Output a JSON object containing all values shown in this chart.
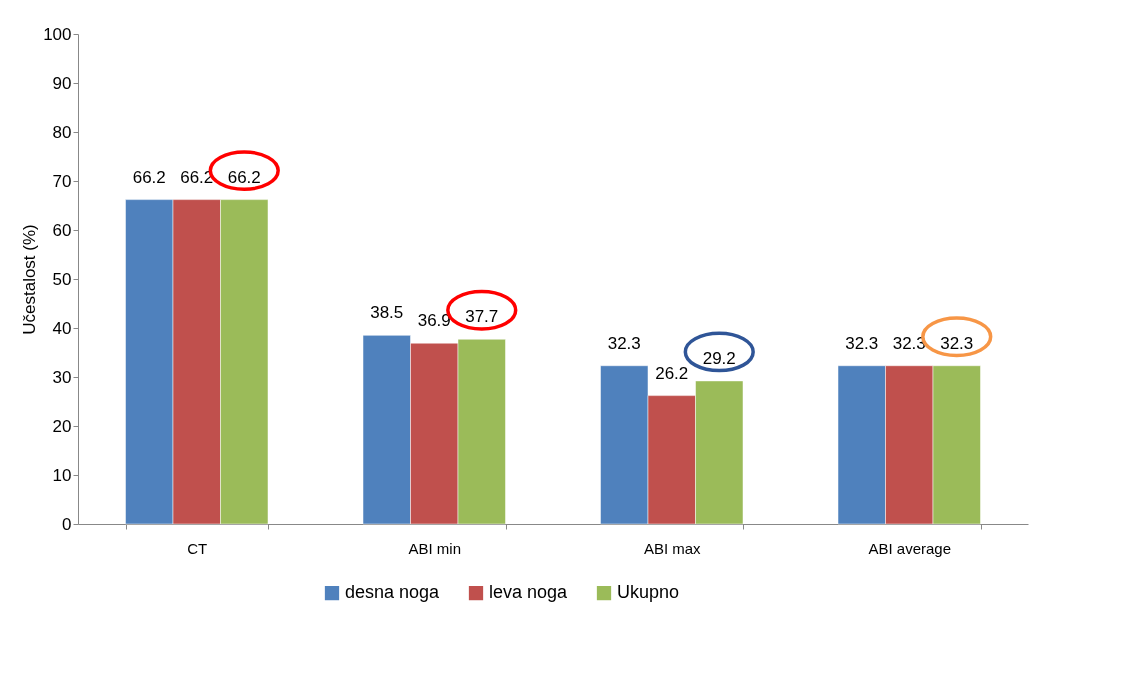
{
  "chart_data": {
    "type": "bar",
    "ylabel": "Učestalost (%)",
    "categories": [
      "CT",
      "ABI min",
      "ABI max",
      "ABI average"
    ],
    "series": [
      {
        "name": "desna noga",
        "color": "#4f81bd",
        "values": [
          66.2,
          38.5,
          32.3,
          32.3
        ]
      },
      {
        "name": "leva noga",
        "color": "#c0504d",
        "values": [
          66.2,
          36.9,
          26.2,
          32.3
        ]
      },
      {
        "name": "Ukupno",
        "color": "#9bbb59",
        "values": [
          66.2,
          37.7,
          29.2,
          32.3
        ]
      }
    ],
    "ylim": [
      0,
      100
    ],
    "yticks": [
      0,
      10,
      20,
      30,
      40,
      50,
      60,
      70,
      80,
      90,
      100
    ],
    "data_labels": true,
    "grid": false,
    "legend": "bottom"
  }
}
